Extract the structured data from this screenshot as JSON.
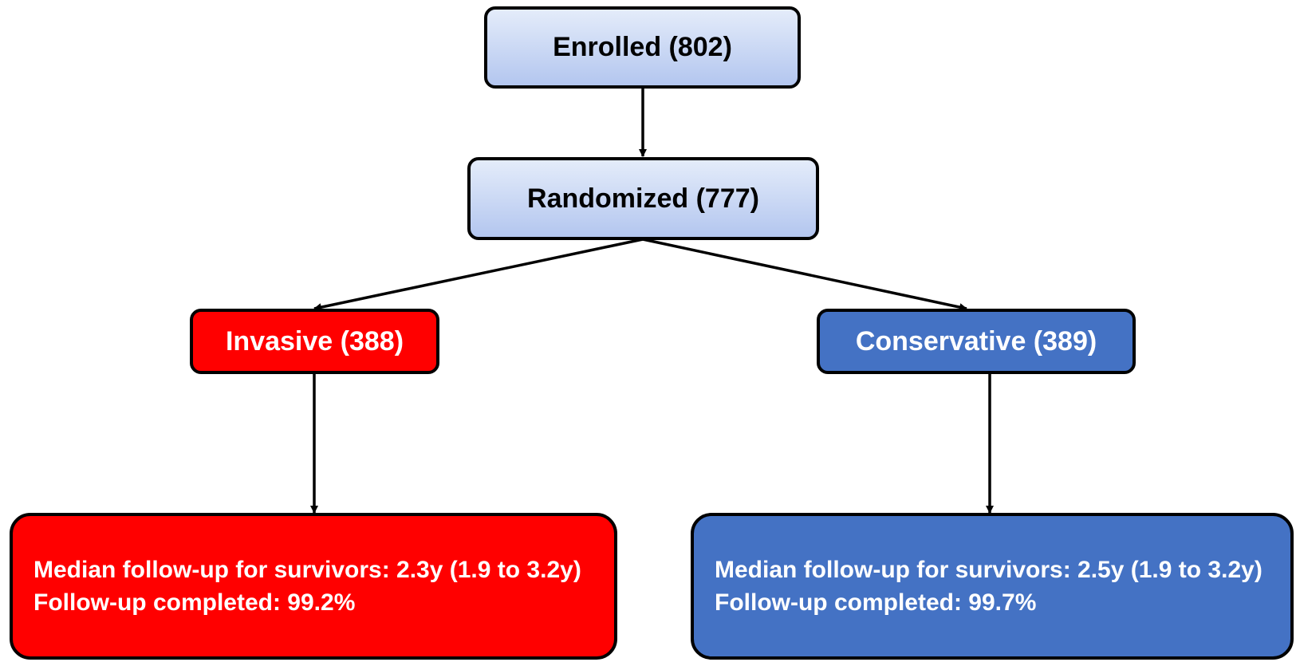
{
  "nodes": [
    {
      "label": "Enrolled (802)"
    },
    {
      "label": "Randomized (777)"
    },
    {
      "label": "Invasive (388)"
    },
    {
      "label": "Conservative (389)"
    },
    {
      "lines": [
        "Median follow-up for survivors: 2.3y (1.9 to 3.2y)",
        "Follow-up completed: 99.2%"
      ]
    },
    {
      "lines": [
        "Median follow-up for survivors: 2.5y (1.9 to 3.2y)",
        "Follow-up completed: 99.7%"
      ]
    }
  ]
}
